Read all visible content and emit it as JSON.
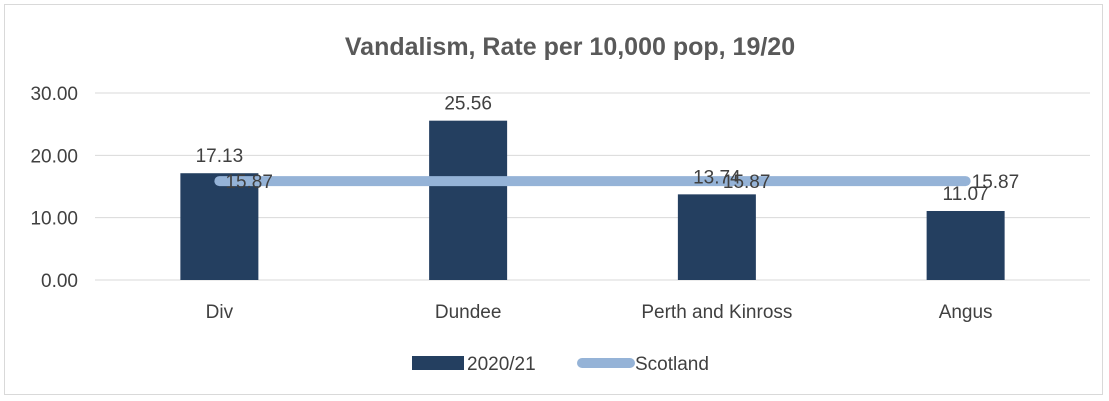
{
  "chart_data": {
    "type": "bar",
    "title": "Vandalism, Rate per 10,000 pop, 19/20",
    "categories": [
      "Div",
      "Dundee",
      "Perth and Kinross",
      "Angus"
    ],
    "series": [
      {
        "name": "2020/21",
        "type": "bar",
        "values": [
          17.13,
          25.56,
          13.74,
          11.07
        ],
        "labels": [
          "17.13",
          "25.56",
          "13.74",
          "11.07"
        ],
        "color": "#243f60"
      },
      {
        "name": "Scotland",
        "type": "line",
        "values": [
          15.87,
          15.87,
          15.87,
          15.87
        ],
        "labels": [
          "15.87",
          "",
          "15.87",
          "15.87"
        ],
        "color": "#95b3d7"
      }
    ],
    "yticks": [
      "0.00",
      "10.00",
      "20.00",
      "30.00"
    ],
    "ylim": [
      0,
      30
    ],
    "grid": true,
    "legend": "bottom"
  }
}
